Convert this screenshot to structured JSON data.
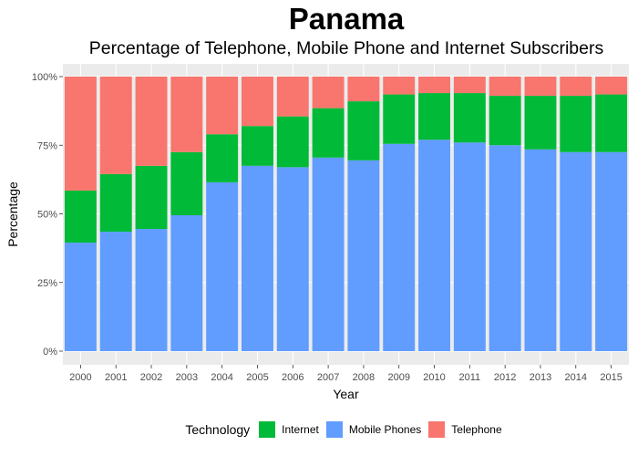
{
  "chart_data": {
    "type": "bar",
    "stacked": "percent",
    "title": "Panama",
    "subtitle": "Percentage of Telephone, Mobile Phone and Internet Subscribers",
    "xlabel": "Year",
    "ylabel": "Percentage",
    "ylim": [
      0,
      100
    ],
    "yticks": [
      "0%",
      "25%",
      "50%",
      "75%",
      "100%"
    ],
    "categories": [
      "2000",
      "2001",
      "2002",
      "2003",
      "2004",
      "2005",
      "2006",
      "2007",
      "2008",
      "2009",
      "2010",
      "2011",
      "2012",
      "2013",
      "2014",
      "2015"
    ],
    "series": [
      {
        "name": "Mobile Phones",
        "color": "#619cff",
        "values": [
          39.5,
          43.5,
          44.5,
          49.5,
          61.5,
          67.5,
          67,
          70.5,
          69.5,
          75.5,
          77,
          76,
          75,
          73.5,
          72.5,
          72.5
        ]
      },
      {
        "name": "Internet",
        "color": "#00ba38",
        "values": [
          19,
          21,
          23,
          23,
          17.5,
          14.5,
          18.5,
          18,
          21.5,
          18,
          17,
          18,
          18,
          19.5,
          20.5,
          21
        ]
      },
      {
        "name": "Telephone",
        "color": "#f8766d",
        "values": [
          41.5,
          35.5,
          32.5,
          27.5,
          21,
          18,
          14.5,
          11.5,
          9,
          6.5,
          6,
          6,
          7,
          7,
          7,
          6.5
        ]
      }
    ],
    "grid": true,
    "legend_position": "bottom",
    "panel_background": "#ebebeb"
  },
  "legend": {
    "title": "Technology",
    "items": [
      {
        "label": "Internet",
        "color": "#00ba38"
      },
      {
        "label": "Mobile Phones",
        "color": "#619cff"
      },
      {
        "label": "Telephone",
        "color": "#f8766d"
      }
    ]
  }
}
